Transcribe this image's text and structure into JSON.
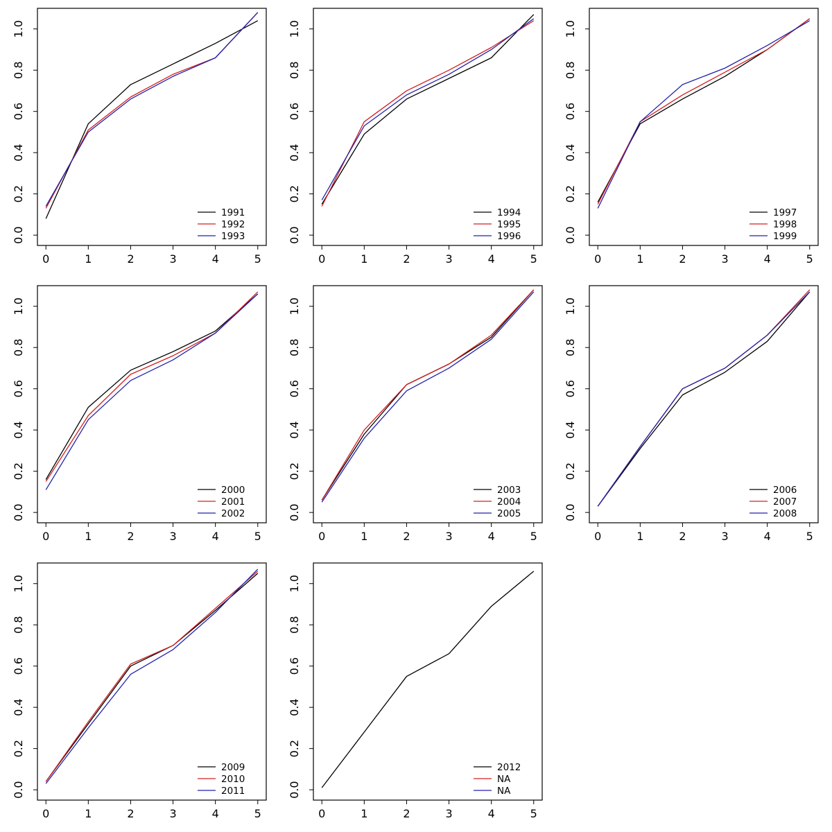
{
  "figure": {
    "description": "3x3 grid of R-style line plots, eight panels populated, bottom-right cell empty",
    "colors": {
      "series1": "#000000",
      "series2": "#d02020",
      "series3": "#2222aa"
    }
  },
  "axes_common": {
    "xlim": [
      -0.2,
      5.2
    ],
    "ylim": [
      -0.05,
      1.1
    ],
    "xticks": [
      0,
      1,
      2,
      3,
      4,
      5
    ],
    "xtick_labels": [
      "0",
      "1",
      "2",
      "3",
      "4",
      "5"
    ],
    "yticks": [
      0,
      0.2,
      0.4,
      0.6,
      0.8,
      1.0
    ],
    "ytick_labels": [
      "0.0",
      "0.2",
      "0.4",
      "0.6",
      "0.8",
      "1.0"
    ],
    "grid": false,
    "box": true,
    "legend_position": "bottom-right"
  },
  "chart_data": [
    {
      "type": "line",
      "title": "",
      "xlabel": "",
      "ylabel": "",
      "x": [
        0,
        1,
        2,
        3,
        4,
        5
      ],
      "series": [
        {
          "name": "1991",
          "color": "#000000",
          "values": [
            0.08,
            0.54,
            0.73,
            0.83,
            0.93,
            1.04
          ]
        },
        {
          "name": "1992",
          "color": "#d02020",
          "values": [
            0.13,
            0.51,
            0.67,
            0.78,
            0.86,
            1.08
          ]
        },
        {
          "name": "1993",
          "color": "#2222aa",
          "values": [
            0.14,
            0.5,
            0.66,
            0.77,
            0.86,
            1.08
          ]
        }
      ]
    },
    {
      "type": "line",
      "title": "",
      "xlabel": "",
      "ylabel": "",
      "x": [
        0,
        1,
        2,
        3,
        4,
        5
      ],
      "series": [
        {
          "name": "1994",
          "color": "#000000",
          "values": [
            0.15,
            0.49,
            0.66,
            0.76,
            0.86,
            1.07
          ]
        },
        {
          "name": "1995",
          "color": "#d02020",
          "values": [
            0.14,
            0.55,
            0.7,
            0.8,
            0.91,
            1.04
          ]
        },
        {
          "name": "1996",
          "color": "#2222aa",
          "values": [
            0.17,
            0.53,
            0.68,
            0.78,
            0.9,
            1.05
          ]
        }
      ]
    },
    {
      "type": "line",
      "title": "",
      "xlabel": "",
      "ylabel": "",
      "x": [
        0,
        1,
        2,
        3,
        4,
        5
      ],
      "series": [
        {
          "name": "1997",
          "color": "#000000",
          "values": [
            0.16,
            0.54,
            0.66,
            0.77,
            0.9,
            1.05
          ]
        },
        {
          "name": "1998",
          "color": "#d02020",
          "values": [
            0.15,
            0.55,
            0.68,
            0.79,
            0.9,
            1.05
          ]
        },
        {
          "name": "1999",
          "color": "#2222aa",
          "values": [
            0.13,
            0.55,
            0.73,
            0.81,
            0.92,
            1.04
          ]
        }
      ]
    },
    {
      "type": "line",
      "title": "",
      "xlabel": "",
      "ylabel": "",
      "x": [
        0,
        1,
        2,
        3,
        4,
        5
      ],
      "series": [
        {
          "name": "2000",
          "color": "#000000",
          "values": [
            0.16,
            0.51,
            0.69,
            0.78,
            0.88,
            1.06
          ]
        },
        {
          "name": "2001",
          "color": "#d02020",
          "values": [
            0.15,
            0.47,
            0.67,
            0.76,
            0.87,
            1.07
          ]
        },
        {
          "name": "2002",
          "color": "#2222aa",
          "values": [
            0.11,
            0.45,
            0.64,
            0.74,
            0.87,
            1.06
          ]
        }
      ]
    },
    {
      "type": "line",
      "title": "",
      "xlabel": "",
      "ylabel": "",
      "x": [
        0,
        1,
        2,
        3,
        4,
        5
      ],
      "series": [
        {
          "name": "2003",
          "color": "#000000",
          "values": [
            0.06,
            0.38,
            0.62,
            0.72,
            0.85,
            1.08
          ]
        },
        {
          "name": "2004",
          "color": "#d02020",
          "values": [
            0.06,
            0.4,
            0.62,
            0.72,
            0.86,
            1.08
          ]
        },
        {
          "name": "2005",
          "color": "#2222aa",
          "values": [
            0.05,
            0.36,
            0.59,
            0.7,
            0.84,
            1.07
          ]
        }
      ]
    },
    {
      "type": "line",
      "title": "",
      "xlabel": "",
      "ylabel": "",
      "x": [
        0,
        1,
        2,
        3,
        4,
        5
      ],
      "series": [
        {
          "name": "2006",
          "color": "#000000",
          "values": [
            0.03,
            0.31,
            0.57,
            0.68,
            0.83,
            1.07
          ]
        },
        {
          "name": "2007",
          "color": "#d02020",
          "values": [
            0.03,
            0.32,
            0.6,
            0.7,
            0.86,
            1.08
          ]
        },
        {
          "name": "2008",
          "color": "#2222aa",
          "values": [
            0.03,
            0.32,
            0.6,
            0.7,
            0.86,
            1.07
          ]
        }
      ]
    },
    {
      "type": "line",
      "title": "",
      "xlabel": "",
      "ylabel": "",
      "x": [
        0,
        1,
        2,
        3,
        4,
        5
      ],
      "series": [
        {
          "name": "2009",
          "color": "#000000",
          "values": [
            0.04,
            0.32,
            0.6,
            0.7,
            0.87,
            1.05
          ]
        },
        {
          "name": "2010",
          "color": "#d02020",
          "values": [
            0.04,
            0.33,
            0.61,
            0.7,
            0.88,
            1.06
          ]
        },
        {
          "name": "2011",
          "color": "#2222aa",
          "values": [
            0.03,
            0.3,
            0.56,
            0.68,
            0.86,
            1.07
          ]
        }
      ]
    },
    {
      "type": "line",
      "title": "",
      "xlabel": "",
      "ylabel": "",
      "x": [
        0,
        1,
        2,
        3,
        4,
        5
      ],
      "series": [
        {
          "name": "2012",
          "color": "#000000",
          "values": [
            0.01,
            0.28,
            0.55,
            0.66,
            0.89,
            1.06
          ]
        },
        {
          "name": "NA",
          "color": "#d02020",
          "values": null
        },
        {
          "name": "NA",
          "color": "#2222aa",
          "values": null
        }
      ]
    }
  ]
}
